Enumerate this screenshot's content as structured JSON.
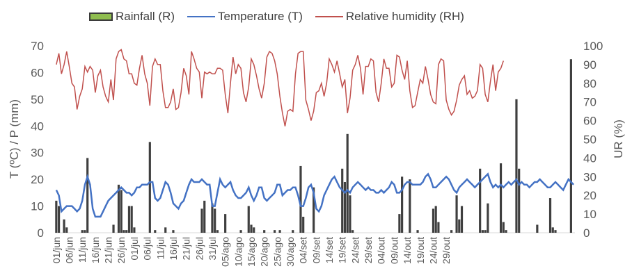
{
  "chart_data": {
    "type": "bar+line",
    "legend": [
      {
        "key": "rain",
        "label": "Rainfall (R)",
        "color": "#8fbd4f"
      },
      {
        "key": "temp",
        "label": "Temperature (T)",
        "color": "#4472c4"
      },
      {
        "key": "rh",
        "label": "Relative humidity (RH)",
        "color": "#c0504d"
      }
    ],
    "y_left": {
      "label": "T (ºC) / P (mm)",
      "min": 0,
      "max": 70,
      "ticks": [
        0,
        10,
        20,
        30,
        40,
        50,
        60,
        70
      ]
    },
    "y_right": {
      "label": "UR (%)",
      "min": 0,
      "max": 100,
      "ticks": [
        0,
        10,
        20,
        30,
        40,
        50,
        60,
        70,
        80,
        90,
        100
      ]
    },
    "x_tick_labels": [
      "01/jun",
      "06/jun",
      "11/jun",
      "16/jun",
      "21/jun",
      "26/jun",
      "01/jul",
      "06/jul",
      "11/jul",
      "16/jul",
      "21/jul",
      "26/jul",
      "31/jul",
      "05/ago",
      "10/ago",
      "15/ago",
      "20/ago",
      "25/ago",
      "30/ago",
      "04/set",
      "09/set",
      "14/set",
      "19/set",
      "24/set",
      "29/set",
      "04/out",
      "09/out",
      "14/out",
      "19/out",
      "24/out",
      "29/out"
    ],
    "series": [
      {
        "name": "Rainfall (R)",
        "axis": "left",
        "kind": "bar",
        "x_start": 1,
        "values": [
          12,
          10,
          0,
          5,
          2,
          0,
          0,
          0,
          0,
          0,
          1,
          1,
          28,
          0,
          0,
          0,
          0,
          0,
          0,
          0,
          0,
          0,
          3,
          0,
          18,
          16,
          1,
          1,
          10,
          10,
          2,
          0,
          0,
          0,
          0,
          0,
          34,
          0,
          1,
          0,
          0,
          0,
          2,
          0,
          0,
          1,
          0,
          0,
          0,
          0,
          0,
          0,
          0,
          0,
          0,
          0,
          9,
          12,
          0,
          0,
          11,
          9,
          1,
          0,
          0,
          7,
          0,
          0,
          0,
          0,
          0,
          1,
          0,
          0,
          10,
          3,
          2,
          0,
          0,
          0,
          1,
          0,
          0,
          0,
          1,
          0,
          1,
          0,
          0,
          0,
          0,
          1,
          0,
          0,
          25,
          6,
          0,
          0,
          0,
          17,
          0,
          0,
          0,
          0,
          0,
          0,
          0,
          0,
          0,
          0,
          24,
          19,
          37,
          14,
          1,
          0,
          0,
          0,
          0,
          0,
          0,
          0,
          0,
          0,
          0,
          0,
          0,
          0,
          0,
          0,
          0,
          0,
          7,
          21,
          0,
          0,
          20,
          0,
          0,
          1,
          0,
          0,
          0,
          0,
          0,
          9,
          10,
          4,
          0,
          0,
          0,
          0,
          1,
          0,
          14,
          5,
          10,
          0,
          0,
          0,
          0,
          0,
          0,
          24,
          1,
          1,
          11,
          0,
          0,
          0,
          0,
          26,
          4,
          1,
          0,
          0,
          0,
          50,
          24,
          0,
          0,
          0,
          0,
          0,
          0,
          3,
          0,
          0,
          0,
          0,
          13,
          2,
          1,
          0,
          0,
          0,
          0,
          0,
          65
        ]
      },
      {
        "name": "Temperature (T)",
        "axis": "left",
        "kind": "line",
        "x_start": 1,
        "values": [
          16,
          14,
          8,
          9,
          10,
          10,
          10,
          9,
          8,
          9,
          12,
          18,
          21,
          18,
          9,
          6,
          6,
          6,
          8,
          10,
          12,
          13,
          14,
          15,
          16,
          17,
          16,
          15,
          15,
          14,
          15,
          17,
          17,
          18,
          18,
          18,
          19,
          19,
          13,
          12,
          13,
          16,
          19,
          18,
          15,
          11,
          10,
          9,
          11,
          12,
          15,
          18,
          20,
          19,
          19,
          19,
          20,
          19,
          18,
          18,
          10,
          10,
          15,
          20,
          18,
          17,
          18,
          19,
          16,
          14,
          13,
          13,
          14,
          15,
          17,
          14,
          12,
          14,
          17,
          17,
          13,
          12,
          13,
          14,
          15,
          18,
          18,
          14,
          15,
          16,
          16,
          17,
          17,
          14,
          10,
          10,
          13,
          17,
          18,
          15,
          9,
          8,
          10,
          14,
          16,
          18,
          20,
          21,
          19,
          17,
          16,
          15,
          16,
          15,
          17,
          18,
          19,
          18,
          17,
          16,
          17,
          16,
          16,
          15,
          15,
          16,
          15,
          16,
          17,
          19,
          18,
          15,
          15,
          16,
          18,
          19,
          19,
          18,
          18,
          18,
          18,
          19,
          21,
          22,
          20,
          17,
          17,
          18,
          19,
          20,
          21,
          20,
          18,
          16,
          15,
          17,
          18,
          19,
          20,
          19,
          18,
          17,
          18,
          19,
          20,
          21,
          22,
          19,
          17,
          18,
          17,
          18,
          17,
          18,
          19,
          18,
          19,
          20,
          18,
          19,
          18,
          18,
          17,
          18,
          19,
          19,
          20,
          19,
          18,
          17,
          17,
          18,
          19,
          18,
          17,
          16,
          18,
          20,
          19,
          18
        ]
      },
      {
        "name": "Relative humidity (RH)",
        "axis": "right",
        "kind": "line",
        "x_start": 1,
        "values": [
          90,
          96,
          85,
          90,
          97,
          89,
          80,
          78,
          66,
          73,
          77,
          89,
          86,
          89,
          87,
          75,
          84,
          87,
          78,
          73,
          70,
          82,
          71,
          93,
          97,
          98,
          93,
          92,
          85,
          85,
          80,
          79,
          88,
          95,
          85,
          80,
          68,
          89,
          93,
          90,
          90,
          76,
          67,
          67,
          70,
          77,
          66,
          67,
          75,
          88,
          84,
          74,
          97,
          93,
          88,
          86,
          72,
          86,
          85,
          86,
          85,
          85,
          88,
          88,
          87,
          74,
          64,
          80,
          94,
          85,
          90,
          88,
          75,
          70,
          78,
          93,
          90,
          84,
          77,
          72,
          80,
          94,
          97,
          96,
          92,
          85,
          73,
          64,
          57,
          65,
          66,
          65,
          85,
          96,
          97,
          97,
          71,
          66,
          60,
          65,
          75,
          76,
          80,
          73,
          80,
          93,
          90,
          86,
          92,
          85,
          78,
          82,
          64,
          72,
          87,
          90,
          95,
          88,
          74,
          89,
          89,
          93,
          92,
          75,
          70,
          80,
          93,
          88,
          88,
          78,
          80,
          95,
          94,
          87,
          82,
          92,
          76,
          67,
          68,
          75,
          82,
          80,
          89,
          82,
          74,
          70,
          69,
          90,
          93,
          92,
          71,
          66,
          63,
          65,
          71,
          79,
          82,
          84,
          74,
          76,
          72,
          73,
          76,
          90,
          88,
          74,
          70,
          81,
          90,
          76,
          86,
          88,
          92
        ]
      }
    ]
  }
}
